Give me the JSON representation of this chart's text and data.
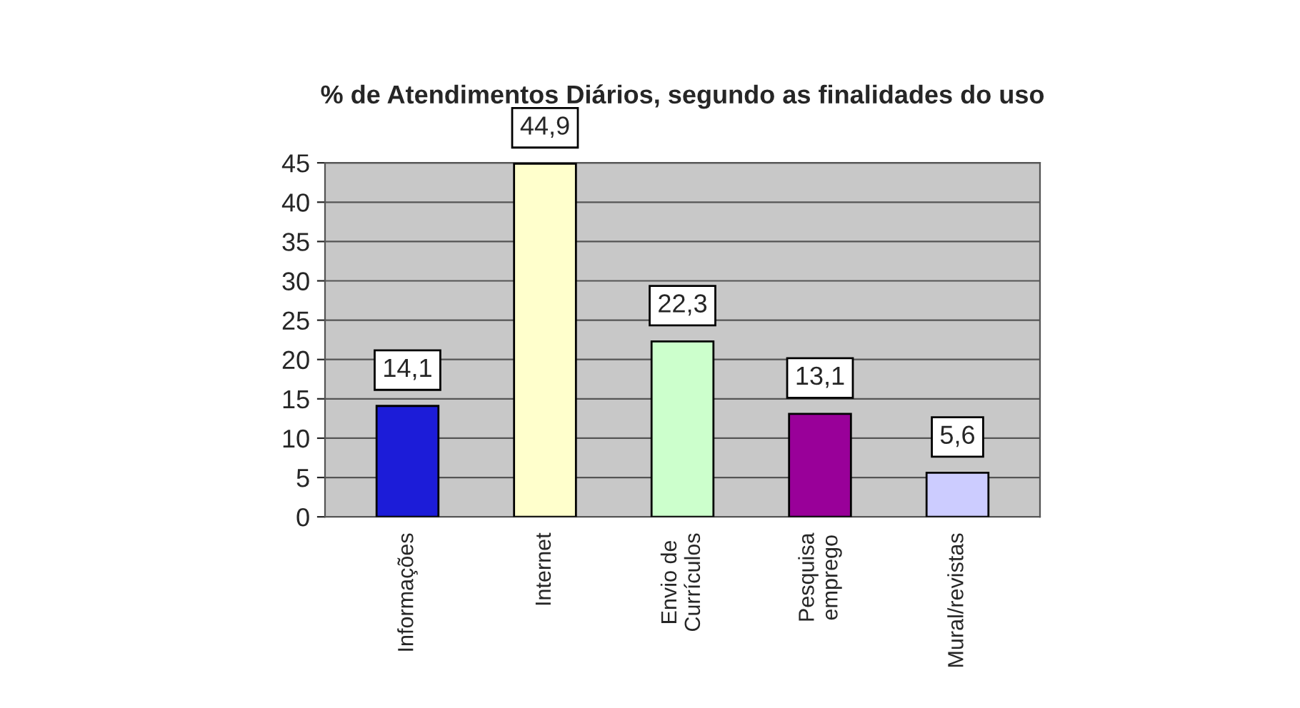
{
  "chart_data": {
    "type": "bar",
    "title": "% de Atendimentos Diários, segundo as finalidades do uso",
    "categories": [
      "Informações",
      "Internet",
      "Envio de\nCurrículos",
      "Pesquisa\nemprego",
      "Mural/revistas"
    ],
    "values": [
      14.1,
      44.9,
      22.3,
      13.1,
      5.6
    ],
    "colors": [
      "#1c1cd8",
      "#ffffcc",
      "#ccffcc",
      "#990099",
      "#ccccff"
    ],
    "value_labels": [
      "14,1",
      "44,9",
      "22,3",
      "13,1",
      "5,6"
    ],
    "ylim": [
      0,
      45
    ],
    "yticks": [
      0,
      5,
      10,
      15,
      20,
      25,
      30,
      35,
      40,
      45
    ],
    "grid": "y",
    "legend": false
  }
}
